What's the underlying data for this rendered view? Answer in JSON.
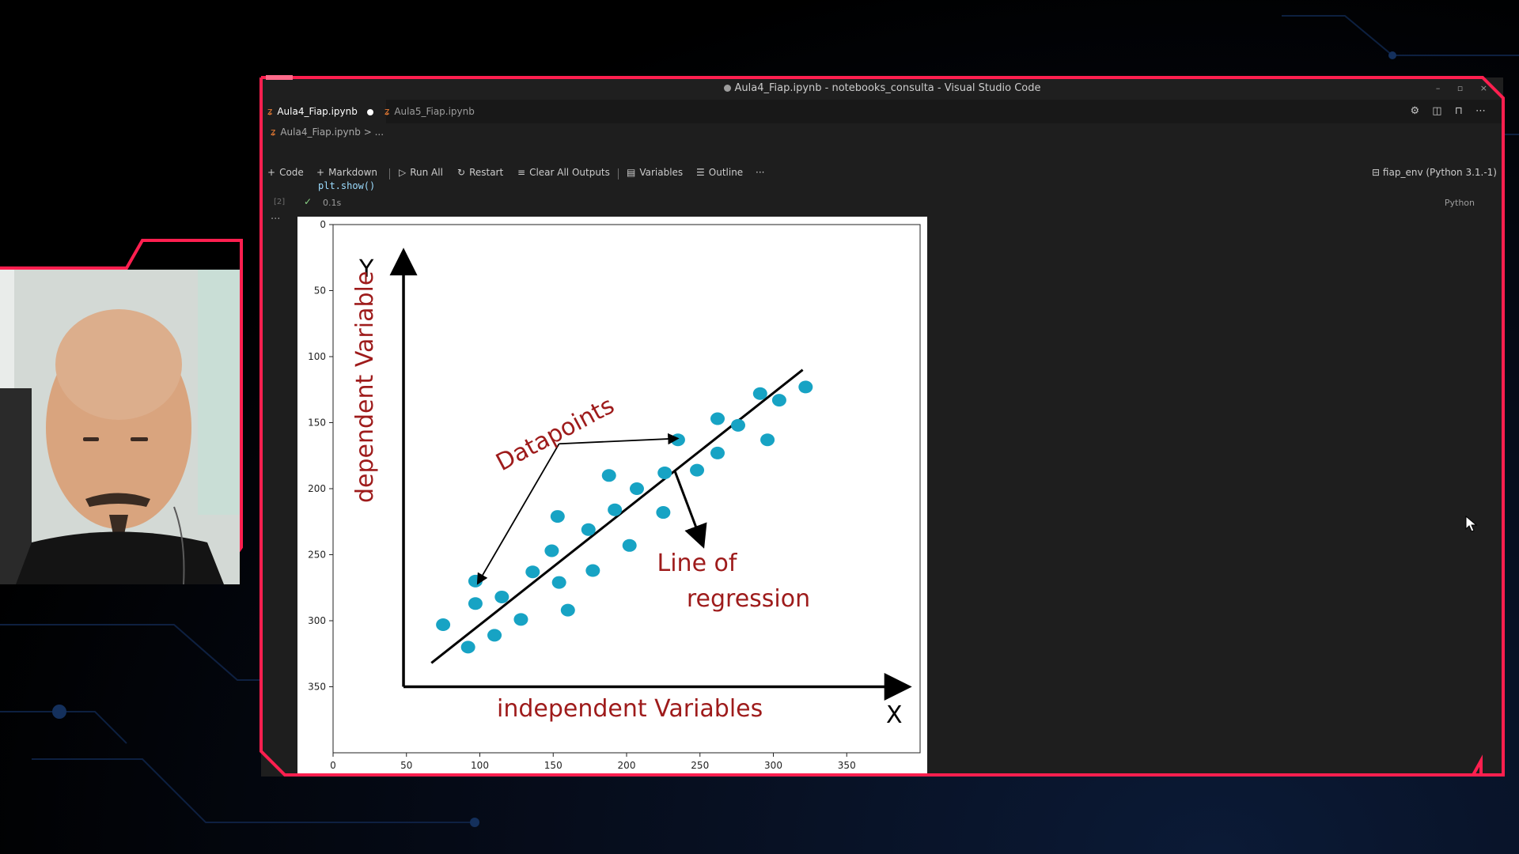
{
  "window": {
    "title": "Aula4_Fiap.ipynb - notebooks_consulta - Visual Studio Code",
    "controls": [
      "–",
      "▫",
      "×"
    ]
  },
  "tabs": [
    {
      "label": "Aula4_Fiap.ipynb",
      "active": true,
      "modified": true
    },
    {
      "label": "Aula5_Fiap.ipynb",
      "active": false,
      "modified": false
    }
  ],
  "tab_action_icons": [
    "gear-icon",
    "split-editor-icon",
    "lock-icon",
    "more-icon"
  ],
  "breadcrumb": {
    "file": "Aula4_Fiap.ipynb",
    "rest": "> ..."
  },
  "toolbar": {
    "code": "Code",
    "markdown": "Markdown",
    "run_all": "Run All",
    "restart": "Restart",
    "clear_outputs": "Clear All Outputs",
    "variables": "Variables",
    "outline": "Outline",
    "more": "···",
    "kernel": "fiap_env (Python 3.1.-1)"
  },
  "cell": {
    "code_line": "plt.show()",
    "number": "[2]",
    "elapsed": "0.1s",
    "language": "Python",
    "output_menu": "···"
  },
  "image": {
    "y_letter": "Y",
    "x_letter": "X",
    "y_caption": "dependent Variable",
    "x_caption": "independent Variables",
    "datapoints_label": "Datapoints",
    "line_label_1": "Line of",
    "line_label_2": "regression",
    "label_color": "#9e1b1b",
    "point_color": "#17a3c4"
  },
  "chart_data": {
    "type": "scatter",
    "x_ticks": [
      "0",
      "50",
      "100",
      "150",
      "200",
      "250",
      "300",
      "350"
    ],
    "y_ticks": [
      "0",
      "50",
      "100",
      "150",
      "200",
      "250",
      "300",
      "350"
    ],
    "xlim": [
      0,
      400
    ],
    "ylim": [
      400,
      0
    ],
    "image_y_axis": [
      48,
      350
    ],
    "image_x_axis": [
      48,
      385
    ],
    "regression_line": {
      "x": [
        67,
        320
      ],
      "y": [
        332,
        110
      ]
    },
    "points": {
      "x": [
        75,
        92,
        97,
        97,
        110,
        115,
        128,
        136,
        149,
        153,
        154,
        160,
        174,
        177,
        188,
        192,
        202,
        207,
        225,
        226,
        235,
        248,
        262,
        262,
        276,
        291,
        296,
        304,
        322
      ],
      "y": [
        303,
        320,
        287,
        270,
        311,
        282,
        299,
        263,
        247,
        221,
        271,
        292,
        231,
        262,
        190,
        216,
        243,
        200,
        218,
        188,
        163,
        186,
        173,
        147,
        152,
        128,
        163,
        133,
        123
      ]
    },
    "datapoints_arrows": {
      "origin": [
        154,
        166
      ],
      "to_a": [
        99,
        271
      ],
      "to_b": [
        234,
        162
      ]
    },
    "regression_arrow": {
      "from": [
        233,
        187
      ],
      "to": [
        250,
        237
      ]
    }
  }
}
